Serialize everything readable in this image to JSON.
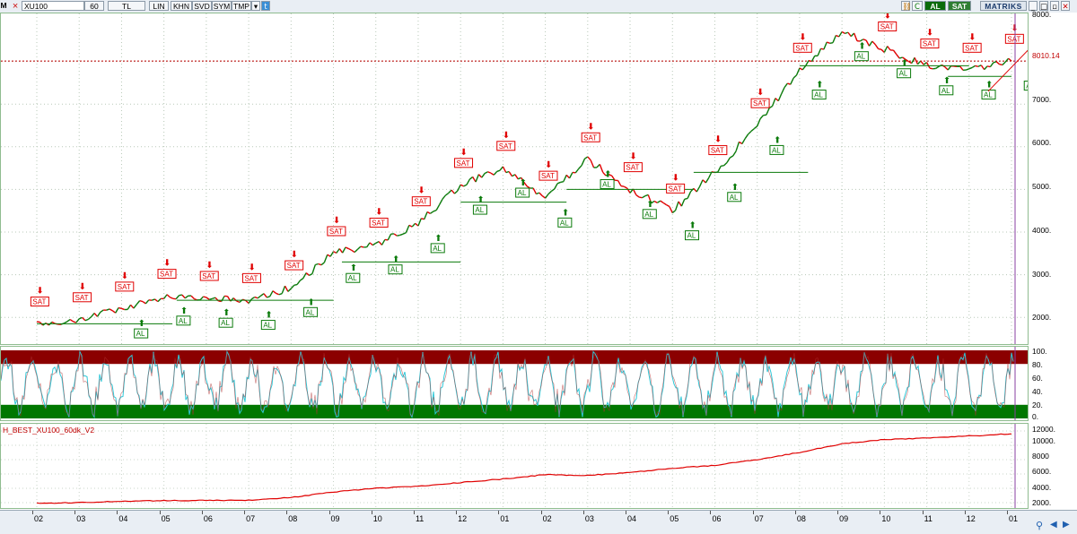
{
  "toolbar": {
    "logo_text": "M",
    "symbol": "XU100",
    "period": "60",
    "currency": "TL",
    "buttons": [
      "LIN",
      "KHN",
      "SVD",
      "SYM",
      "TMP"
    ],
    "al_label": "AL",
    "sat_label": "SAT",
    "brand": "MATRIKS",
    "right_icons": [
      "link-icon",
      "refresh-icon"
    ]
  },
  "price_panel": {
    "last_price": "8010.14",
    "y_labels": [
      "8000.",
      "7000.",
      "6000.",
      "5000.",
      "4000.",
      "3000.",
      "2000."
    ],
    "signal_buy": "AL",
    "signal_sell": "SAT"
  },
  "osc_panel": {
    "y_labels": [
      "100.",
      "80.",
      "60.",
      "40.",
      "20.",
      "0."
    ]
  },
  "equity_panel": {
    "name": "H_BEST_XU100_60dk_V2",
    "y_labels": [
      "12000.",
      "10000.",
      "8000",
      "6000.",
      "4000.",
      "2000."
    ]
  },
  "x_axis": {
    "labels": [
      "02",
      "03",
      "04",
      "05",
      "06",
      "07",
      "08",
      "09",
      "10",
      "11",
      "12",
      "01",
      "02",
      "03",
      "04",
      "05",
      "06",
      "07",
      "08",
      "09",
      "10",
      "11",
      "12",
      "01"
    ]
  },
  "colors": {
    "buy": "#0a7a0a",
    "sell": "#e00000",
    "osc_top_band": "#8b0000",
    "osc_bottom_band": "#007700",
    "osc_line": "#30c8d8",
    "equity": "#e00000"
  },
  "chart_data": {
    "type": "line",
    "series": [
      {
        "name": "XU100",
        "x": [
          "02",
          "03",
          "04",
          "05",
          "06",
          "07",
          "08",
          "09",
          "10",
          "11",
          "12",
          "01",
          "02",
          "03",
          "04",
          "05",
          "06",
          "07",
          "08",
          "09",
          "10",
          "11",
          "12",
          "01"
        ],
        "values": [
          1850,
          1950,
          2200,
          2500,
          2450,
          2400,
          2700,
          3500,
          3700,
          4200,
          5100,
          5500,
          4800,
          5700,
          5000,
          4500,
          5400,
          6500,
          7800,
          8700,
          8300,
          7900,
          7800,
          8010
        ]
      },
      {
        "name": "H_BEST_XU100_60dk_V2",
        "x": [
          "02",
          "03",
          "04",
          "05",
          "06",
          "07",
          "08",
          "09",
          "10",
          "11",
          "12",
          "01",
          "02",
          "03",
          "04",
          "05",
          "06",
          "07",
          "08",
          "09",
          "10",
          "11",
          "12",
          "01"
        ],
        "values": [
          1900,
          2000,
          2200,
          2300,
          2300,
          2350,
          2700,
          3500,
          4000,
          4300,
          4800,
          5300,
          5900,
          5800,
          6200,
          6800,
          7200,
          8000,
          9000,
          10200,
          10800,
          11000,
          11300,
          11600
        ]
      }
    ],
    "price_ylim": [
      1500,
      9000
    ],
    "equity_ylim": [
      1500,
      12500
    ],
    "osc_ylim": [
      0,
      100
    ],
    "last_price": 8010.14
  }
}
